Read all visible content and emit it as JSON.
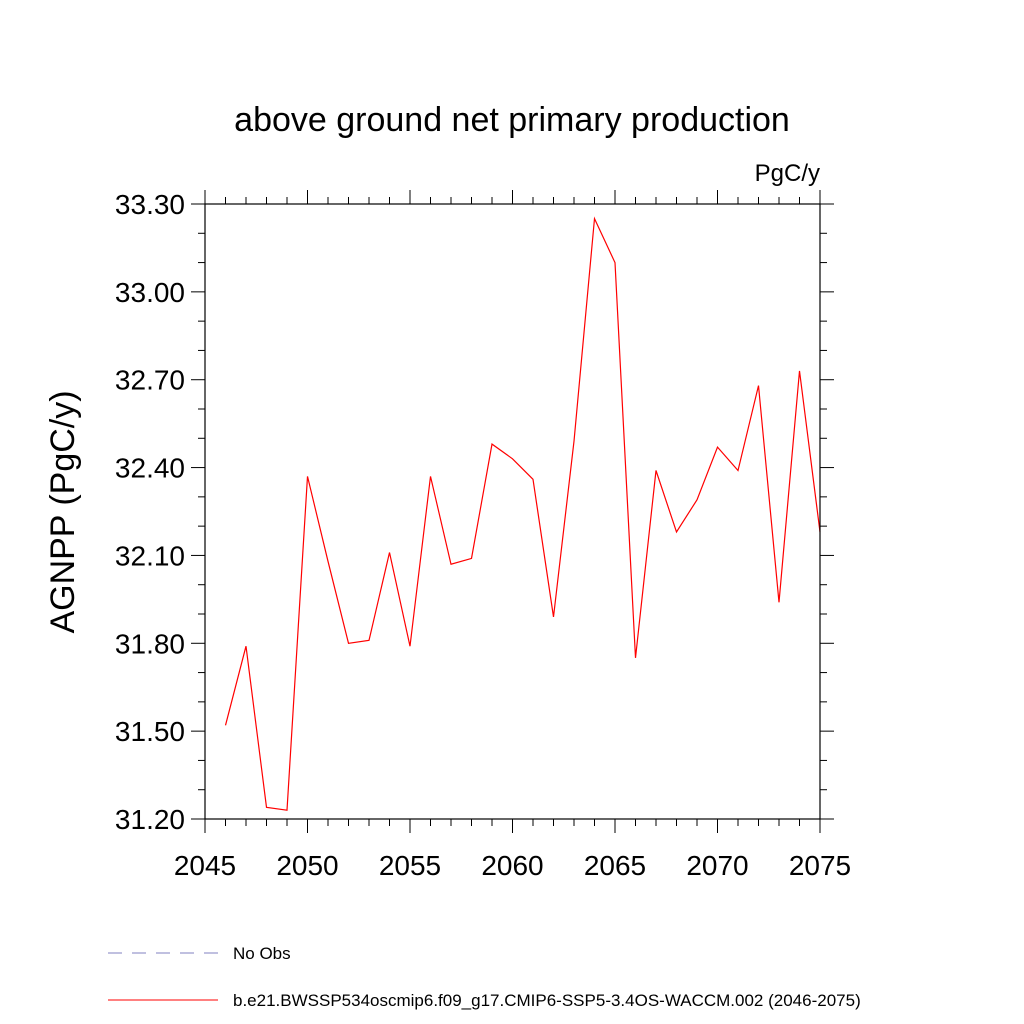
{
  "chart_data": {
    "type": "line",
    "title": "above ground net primary production",
    "units_label": "PgC/y",
    "ylabel": "AGNPP  (PgC/y)",
    "xlabel": "",
    "xlim": [
      2045,
      2075
    ],
    "ylim": [
      31.2,
      33.3
    ],
    "x_ticks": [
      2045,
      2050,
      2055,
      2060,
      2065,
      2070,
      2075
    ],
    "y_ticks": [
      "31.20",
      "31.50",
      "31.80",
      "32.10",
      "32.40",
      "32.70",
      "33.00",
      "33.30"
    ],
    "grid": false,
    "series": [
      {
        "name": "b.e21.BWSSP534oscmip6.f09_g17.CMIP6-SSP5-3.4OS-WACCM.002 (2046-2075)",
        "color": "#ff0000",
        "x": [
          2046,
          2047,
          2048,
          2049,
          2050,
          2051,
          2052,
          2053,
          2054,
          2055,
          2056,
          2057,
          2058,
          2059,
          2060,
          2061,
          2062,
          2063,
          2064,
          2065,
          2066,
          2067,
          2068,
          2069,
          2070,
          2071,
          2072,
          2073,
          2074,
          2075
        ],
        "y": [
          31.52,
          31.79,
          31.24,
          31.23,
          32.37,
          32.08,
          31.8,
          31.81,
          32.11,
          31.79,
          32.37,
          32.07,
          32.09,
          32.48,
          32.43,
          32.36,
          31.89,
          32.49,
          33.25,
          33.1,
          31.75,
          32.39,
          32.18,
          32.29,
          32.47,
          32.39,
          32.68,
          31.94,
          32.73,
          32.18
        ]
      }
    ],
    "legend": {
      "placement": "bottom-left",
      "entries": [
        {
          "label": "No Obs",
          "color": "#8080c0",
          "style": "dashed"
        },
        {
          "label": "b.e21.BWSSP534oscmip6.f09_g17.CMIP6-SSP5-3.4OS-WACCM.002 (2046-2075)",
          "color": "#ff0000",
          "style": "solid"
        }
      ]
    }
  }
}
